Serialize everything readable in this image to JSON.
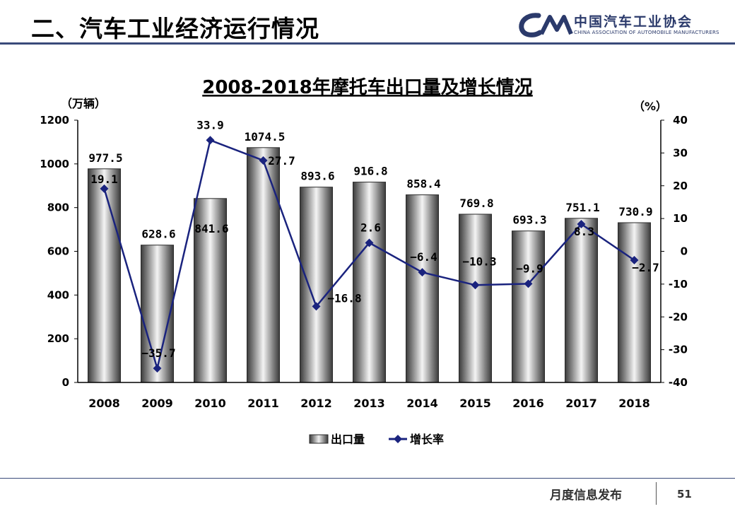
{
  "slide": {
    "title": "二、汽车工业经济运行情况",
    "logo_cn": "中国汽车工业协会",
    "logo_en": "CHINA ASSOCIATION OF AUTOMOBILE MANUFACTURERS",
    "footer_text": "月度信息发布",
    "page_number": "51"
  },
  "colors": {
    "line": "#1a237e",
    "bar_edge": "#2a2a2a",
    "header_rule": "#3a4a7a"
  },
  "chart_data": {
    "type": "bar",
    "title": "2008-2018年摩托车出口量及增长情况",
    "ylabel": "（万辆）",
    "y2label": "（%）",
    "categories": [
      "2008",
      "2009",
      "2010",
      "2011",
      "2012",
      "2013",
      "2014",
      "2015",
      "2016",
      "2017",
      "2018"
    ],
    "series": [
      {
        "name": "出口量",
        "type": "bar",
        "axis": "left",
        "values": [
          977.5,
          628.6,
          841.6,
          1074.5,
          893.6,
          916.8,
          858.4,
          769.8,
          693.3,
          751.1,
          730.9
        ],
        "labels": [
          "977.5",
          "628.6",
          "841.6",
          "1074.5",
          "893.6",
          "916.8",
          "858.4",
          "769.8",
          "693.3",
          "751.1",
          "730.9"
        ]
      },
      {
        "name": "增长率",
        "type": "line",
        "axis": "right",
        "values": [
          19.1,
          -35.7,
          33.9,
          27.7,
          -16.8,
          2.6,
          -6.4,
          -10.3,
          -9.9,
          8.3,
          -2.7
        ],
        "labels": [
          "19.1",
          "−35.7",
          "33.9",
          "27.7",
          "−16.8",
          "2.6",
          "−6.4",
          "−10.3",
          "−9.9",
          "8.3",
          "−2.7"
        ]
      }
    ],
    "ylim": [
      0,
      1200
    ],
    "y_ticks": [
      "0",
      "200",
      "400",
      "600",
      "800",
      "1000",
      "1200"
    ],
    "y2lim": [
      -40,
      40
    ],
    "y2_ticks": [
      "-40",
      "-30",
      "-20",
      "-10",
      "0",
      "10",
      "20",
      "30",
      "40"
    ],
    "grid": false,
    "legend": "bottom"
  }
}
